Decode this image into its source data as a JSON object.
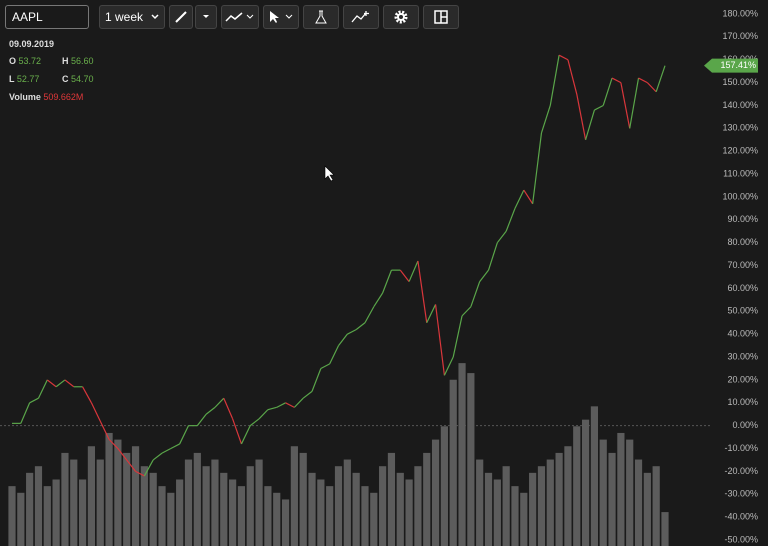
{
  "toolbar": {
    "symbol": "AAPL",
    "interval": "1 week"
  },
  "legend": {
    "date": "09.09.2019",
    "open_label": "O",
    "open": "53.72",
    "high_label": "H",
    "high": "56.60",
    "low_label": "L",
    "low": "52.77",
    "close_label": "C",
    "close": "54.70",
    "volume_label": "Volume",
    "volume": "509.662M"
  },
  "chart_data": {
    "type": "line",
    "last_label": "157.41%",
    "series": [
      {
        "name": "AAPL",
        "up_color": "#5aa64a",
        "down_color": "#d9363b",
        "values": [
          1,
          1,
          10,
          12,
          20,
          17,
          20,
          17,
          17,
          10,
          2,
          -6,
          -10,
          -15,
          -20,
          -22,
          -15,
          -12,
          -10,
          -8,
          0,
          0,
          5,
          8,
          12,
          3,
          -8,
          0,
          3,
          7,
          8,
          10,
          8,
          12,
          15,
          25,
          27,
          35,
          40,
          42,
          45,
          52,
          58,
          68,
          68,
          63,
          72,
          45,
          53,
          22,
          30,
          48,
          52,
          63,
          68,
          80,
          85,
          95,
          103,
          97,
          128,
          140,
          162,
          160,
          145,
          125,
          138,
          140,
          152,
          150,
          130,
          152,
          150,
          146,
          157.41
        ]
      },
      {
        "name": "Volume",
        "type": "bar",
        "axis": "y2",
        "color": "#5c5c5c",
        "values": [
          900,
          800,
          1100,
          1200,
          900,
          1000,
          1400,
          1300,
          1000,
          1500,
          1300,
          1700,
          1600,
          1400,
          1500,
          1200,
          1100,
          900,
          800,
          1000,
          1300,
          1400,
          1200,
          1300,
          1100,
          1000,
          900,
          1200,
          1300,
          900,
          800,
          700,
          1500,
          1400,
          1100,
          1000,
          900,
          1200,
          1300,
          1100,
          900,
          800,
          1200,
          1400,
          1100,
          1000,
          1200,
          1400,
          1600,
          1800,
          2500,
          2750,
          2600,
          1300,
          1100,
          1000,
          1200,
          900,
          800,
          1100,
          1200,
          1300,
          1400,
          1500,
          1800,
          1900,
          2100,
          1600,
          1400,
          1700,
          1600,
          1300,
          1100,
          1200,
          510
        ]
      }
    ],
    "ylim": [
      -50,
      180
    ],
    "y2lim": [
      0,
      8000
    ],
    "yticks": [
      {
        "value": 180,
        "label": "180.00%"
      },
      {
        "value": 170,
        "label": "170.00%"
      },
      {
        "value": 160,
        "label": "160.00%"
      },
      {
        "value": 150,
        "label": "150.00%"
      },
      {
        "value": 140,
        "label": "140.00%"
      },
      {
        "value": 130,
        "label": "130.00%"
      },
      {
        "value": 120,
        "label": "120.00%"
      },
      {
        "value": 110,
        "label": "110.00%"
      },
      {
        "value": 100,
        "label": "100.00%"
      },
      {
        "value": 90,
        "label": "90.00%"
      },
      {
        "value": 80,
        "label": "80.00%"
      },
      {
        "value": 70,
        "label": "70.00%"
      },
      {
        "value": 60,
        "label": "60.00%"
      },
      {
        "value": 50,
        "label": "50.00%"
      },
      {
        "value": 40,
        "label": "40.00%"
      },
      {
        "value": 30,
        "label": "30.00%"
      },
      {
        "value": 20,
        "label": "20.00%"
      },
      {
        "value": 10,
        "label": "10.00%"
      },
      {
        "value": 0,
        "label": "0.00%"
      },
      {
        "value": -10,
        "label": "-10.00%"
      },
      {
        "value": -20,
        "label": "-20.00%"
      },
      {
        "value": -30,
        "label": "-30.00%"
      },
      {
        "value": -40,
        "label": "-40.00%"
      },
      {
        "value": -50,
        "label": "-50.00%"
      }
    ]
  }
}
